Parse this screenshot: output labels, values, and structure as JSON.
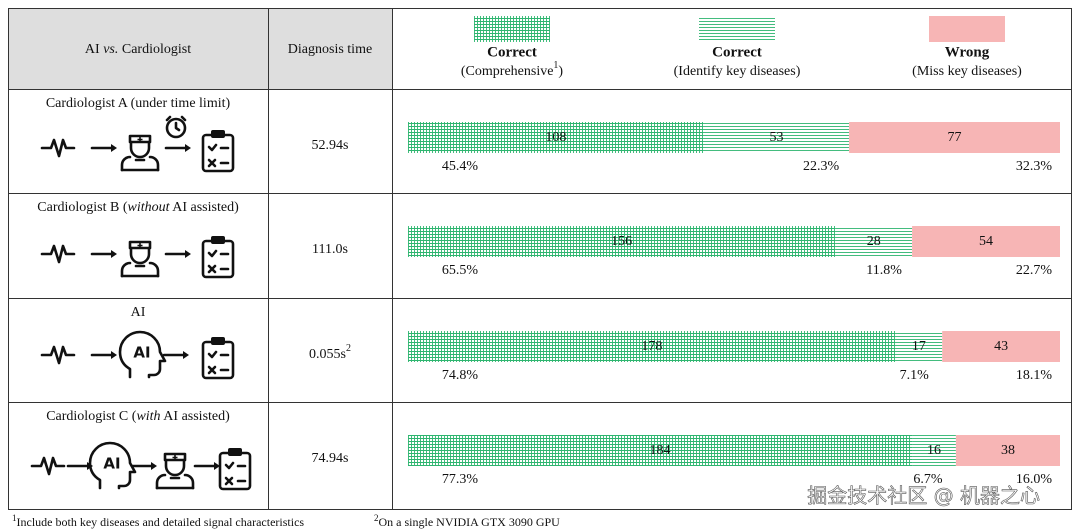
{
  "chart_data": {
    "type": "stacked-hbar-table",
    "header": {
      "col1": [
        {
          "text": "AI ",
          "italic": false
        },
        {
          "text": "vs.",
          "italic": true
        },
        {
          "text": " Cardiologist",
          "italic": false
        }
      ],
      "col2": "Diagnosis time"
    },
    "series": [
      {
        "name": "Correct",
        "detail": "(Comprehensive",
        "sup": "1",
        "detail_end": ")",
        "color": "#2db56f",
        "pattern": "grid"
      },
      {
        "name": "Correct",
        "detail": "(Identify key diseases)",
        "color": "#2db56f",
        "pattern": "hlines"
      },
      {
        "name": "Wrong",
        "detail": "(Miss key diseases)",
        "color": "#f7b5b5",
        "text_color": "#e02020",
        "pattern": "solid"
      }
    ],
    "rows": [
      {
        "label": [
          {
            "text": "Cardiologist A (under time limit)",
            "italic": false
          }
        ],
        "time": "52.94s",
        "values": [
          108,
          53,
          77
        ],
        "percents": [
          "45.4%",
          "22.3%",
          "32.3%"
        ]
      },
      {
        "label": [
          {
            "text": "Cardiologist B (",
            "italic": false
          },
          {
            "text": "without",
            "italic": true
          },
          {
            "text": " AI assisted)",
            "italic": false
          }
        ],
        "time": "111.0s",
        "values": [
          156,
          28,
          54
        ],
        "percents": [
          "65.5%",
          "11.8%",
          "22.7%"
        ]
      },
      {
        "label": [
          {
            "text": "AI",
            "italic": false
          }
        ],
        "time": "0.055s",
        "time_sup": "2",
        "values": [
          178,
          17,
          43
        ],
        "percents": [
          "74.8%",
          "7.1%",
          "18.1%"
        ]
      },
      {
        "label": [
          {
            "text": "Cardiologist C (",
            "italic": false
          },
          {
            "text": "with",
            "italic": true
          },
          {
            "text": " AI assisted)",
            "italic": false
          }
        ],
        "time": "74.94s",
        "values": [
          184,
          16,
          38
        ],
        "percents": [
          "77.3%",
          "6.7%",
          "16.0%"
        ]
      }
    ],
    "ai_icon_label": "AI",
    "footnotes": [
      {
        "sup": "1",
        "text": "Include both key diseases and detailed signal characteristics"
      },
      {
        "sup": "2",
        "text": "On a single NVIDIA GTX 3090 GPU"
      }
    ],
    "watermark": "掘金技术社区 @ 机器之心"
  }
}
